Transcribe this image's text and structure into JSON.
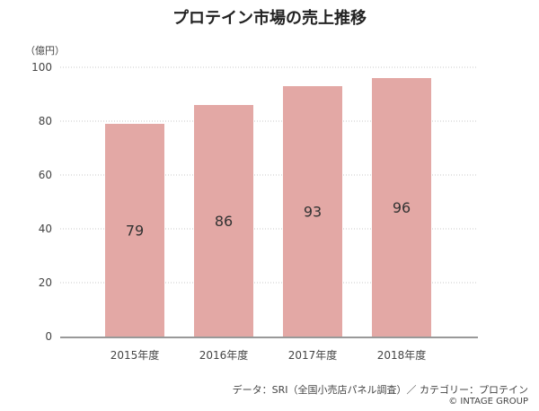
{
  "chart_data": {
    "type": "bar",
    "title": "プロテイン市場の売上推移",
    "ylabel": "（億円）",
    "xlabel": "",
    "categories": [
      "2015年度",
      "2016年度",
      "2017年度",
      "2018年度"
    ],
    "values": [
      79,
      86,
      93,
      96
    ],
    "ylim": [
      0,
      100
    ],
    "yticks": [
      "0",
      "20",
      "40",
      "60",
      "80",
      "100"
    ],
    "bar_color": "#e3a8a5",
    "grid": true,
    "data_labels": [
      "79",
      "86",
      "93",
      "96"
    ]
  },
  "source_note": "データ：SRI（全国小売店パネル調査）／ カテゴリー：プロテイン",
  "copyright": "© INTAGE GROUP"
}
